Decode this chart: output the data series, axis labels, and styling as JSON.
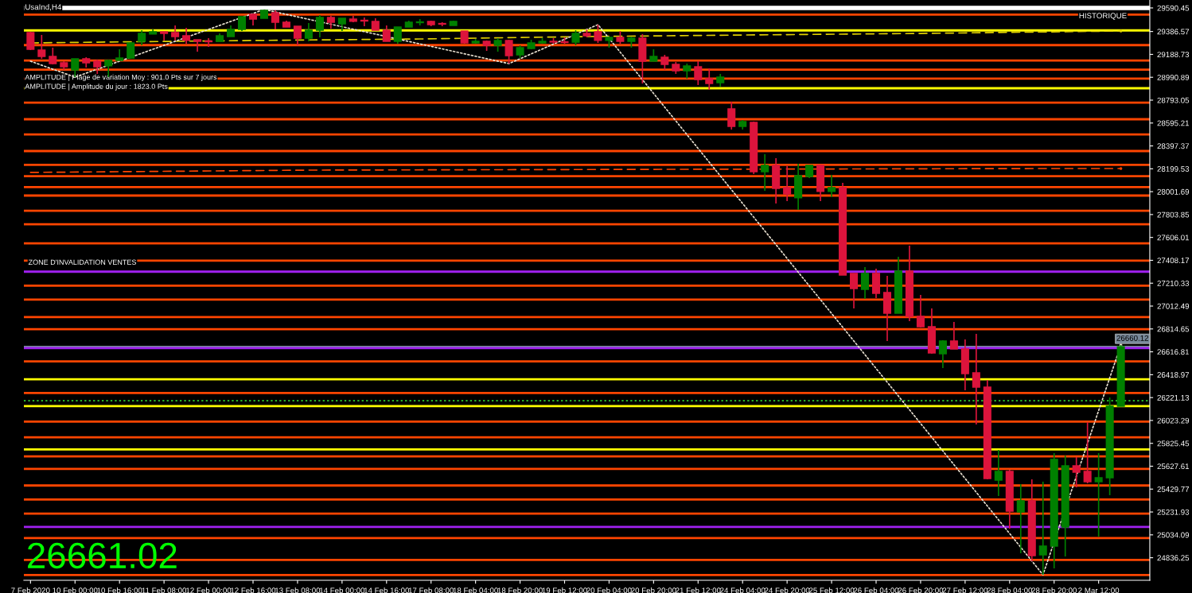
{
  "chart_data": {
    "type": "candlestick",
    "title": "UsaInd,H4",
    "categories": [
      "7 Feb 2020",
      null,
      null,
      null,
      "10 Feb 00:00",
      null,
      null,
      null,
      "10 Feb 16:00",
      null,
      null,
      null,
      "11 Feb 08:00",
      null,
      null,
      null,
      "12 Feb 00:00",
      null,
      null,
      null,
      "12 Feb 16:00",
      null,
      null,
      null,
      "13 Feb 08:00",
      null,
      null,
      null,
      "14 Feb 00:00",
      null,
      null,
      null,
      "14 Feb 16:00",
      null,
      null,
      null,
      "17 Feb 08:00",
      null,
      null,
      null,
      "18 Feb 04:00",
      null,
      null,
      null,
      "18 Feb 20:00",
      null,
      null,
      null,
      "19 Feb 12:00",
      null,
      null,
      null,
      "20 Feb 04:00",
      null,
      null,
      null,
      "20 Feb 20:00",
      null,
      null,
      null,
      "21 Feb 12:00",
      null,
      null,
      null,
      "24 Feb 04:00",
      null,
      null,
      null,
      "24 Feb 20:00",
      null,
      null,
      null,
      "25 Feb 12:00",
      null,
      null,
      null,
      "26 Feb 04:00",
      null,
      null,
      null,
      "26 Feb 20:00",
      null,
      null,
      null,
      "27 Feb 12:00",
      null,
      null,
      null,
      "28 Feb 04:00",
      null,
      null,
      null,
      "28 Feb 20:00",
      null,
      null,
      null,
      "2 Mar 12:00",
      null,
      null
    ],
    "series": [
      {
        "type": "line",
        "color": "#e0d000",
        "line_style": "dashed",
        "values": [
          29288,
          null,
          null,
          null,
          null,
          null,
          null,
          null,
          null,
          null,
          null,
          null,
          null,
          null,
          null,
          null,
          null,
          null,
          null,
          null,
          29309,
          null,
          null,
          null,
          null,
          null,
          null,
          null,
          null,
          null,
          null,
          null,
          null,
          null,
          null,
          29322,
          null,
          null,
          null,
          null,
          null,
          null,
          null,
          null,
          null,
          null,
          null,
          null,
          null,
          null,
          29343,
          null,
          null,
          null,
          null,
          null,
          null,
          null,
          null,
          null,
          null,
          null,
          null,
          null,
          null,
          29357,
          null,
          null,
          null,
          null,
          null,
          null,
          null,
          null,
          null,
          null,
          null,
          null,
          null,
          null,
          29370,
          null,
          null,
          null,
          null,
          null,
          null,
          null,
          null,
          null,
          null,
          null,
          null,
          null,
          null,
          null,
          null,
          null,
          29391
        ]
      },
      {
        "type": "line",
        "color": "#ff4500",
        "line_style": "dashed",
        "values": [
          28168,
          null,
          null,
          null,
          null,
          null,
          null,
          null,
          null,
          null,
          null,
          null,
          null,
          null,
          null,
          null,
          null,
          null,
          null,
          null,
          null,
          null,
          null,
          null,
          null,
          28188,
          null,
          null,
          null,
          null,
          null,
          null,
          null,
          null,
          null,
          null,
          null,
          null,
          null,
          null,
          null,
          null,
          null,
          null,
          null,
          null,
          null,
          null,
          null,
          null,
          null,
          null,
          null,
          null,
          null,
          null,
          null,
          null,
          null,
          null,
          null,
          null,
          null,
          null,
          null,
          null,
          null,
          null,
          null,
          null,
          null,
          null,
          null,
          null,
          null,
          null,
          null,
          null,
          null,
          null,
          null,
          null,
          null,
          null,
          null,
          null,
          null,
          null,
          null,
          null,
          null,
          null,
          28202,
          null,
          null,
          null,
          null,
          null,
          28202
        ]
      },
      {
        "type": "line",
        "color": "#e8e0d0",
        "line_style": "dotted",
        "values": [
          29130,
          null,
          null,
          null,
          28992,
          null,
          null,
          null,
          null,
          null,
          null,
          null,
          null,
          null,
          null,
          null,
          null,
          null,
          null,
          null,
          null,
          29577,
          null,
          null,
          null,
          null,
          null,
          null,
          null,
          null,
          null,
          null,
          null,
          null,
          null,
          null,
          null,
          null,
          null,
          null,
          null,
          null,
          null,
          29109,
          null,
          null,
          null,
          null,
          null,
          null,
          null,
          29446,
          null,
          null,
          null,
          null,
          null,
          null,
          null,
          null,
          null,
          null,
          null,
          null,
          null,
          null,
          null,
          null,
          null,
          null,
          null,
          null,
          null,
          null,
          null,
          null,
          null,
          null,
          null,
          null,
          null,
          null,
          null,
          null,
          null,
          null,
          null,
          null,
          null,
          null,
          null,
          24689,
          null,
          null,
          null,
          null,
          null,
          null,
          26676
        ]
      },
      {
        "type": "candlestick",
        "colors": [
          "#dc143c",
          "#dc143c",
          "#dc143c",
          "#dc143c",
          "#008000",
          "#dc143c",
          "#dc143c",
          "#008000",
          "#008000",
          "#008000",
          "#008000",
          "#008000",
          "#dc143c",
          "#dc143c",
          "#dc143c",
          "#dc143c",
          "#dc143c",
          "#008000",
          "#008000",
          "#008000",
          "#dc143c",
          "#008000",
          "#dc143c",
          "#dc143c",
          "#dc143c",
          "#008000",
          "#008000",
          "#dc143c",
          "#008000",
          "#dc143c",
          "#dc143c",
          "#dc143c",
          "#dc143c",
          "#008000",
          "#008000",
          "#008000",
          "#dc143c",
          "#dc143c",
          "#008000",
          "#dc143c",
          "#008000",
          "#dc143c",
          "#008000",
          "#dc143c",
          "#008000",
          "#008000",
          "#008000",
          "#dc143c",
          "#dc143c",
          "#008000",
          "#dc143c",
          "#dc143c",
          "#008000",
          "#dc143c",
          "#008000",
          "#dc143c",
          "#008000",
          "#dc143c",
          "#dc143c",
          "#008000",
          "#dc143c",
          "#dc143c",
          "#008000",
          "#dc143c",
          "#008000",
          "#dc143c",
          "#008000",
          "#dc143c",
          "#dc143c",
          "#008000",
          "#008000",
          "#dc143c",
          "#008000",
          "#dc143c",
          "#dc143c",
          "#008000",
          "#dc143c",
          "#dc143c",
          "#008000",
          "#dc143c",
          "#dc143c",
          "#dc143c",
          "#008000",
          "#dc143c",
          "#dc143c",
          "#dc143c",
          "#dc143c",
          "#008000",
          "#dc143c",
          "#008000",
          "#dc143c",
          "#008000",
          "#008000",
          "#008000",
          "#dc143c",
          "#dc143c",
          "#008000",
          "#008000",
          "#008000"
        ],
        "ohlc": [
          [
            29377,
            29384,
            29226,
            29233
          ],
          [
            29226,
            29357,
            29151,
            29171
          ],
          [
            29171,
            29247,
            29102,
            29109
          ],
          [
            29116,
            29130,
            29054,
            29082
          ],
          [
            29054,
            29151,
            28992,
            29151
          ],
          [
            29151,
            29164,
            29075,
            29116
          ],
          [
            29130,
            29144,
            29020,
            29082
          ],
          [
            29089,
            29144,
            28992,
            29137
          ],
          [
            29137,
            29233,
            29137,
            29157
          ],
          [
            29157,
            29295,
            29151,
            29288
          ],
          [
            29302,
            29398,
            29267,
            29370
          ],
          [
            29364,
            29405,
            29364,
            29384
          ],
          [
            29384,
            29384,
            29309,
            29370
          ],
          [
            29377,
            29439,
            29309,
            29343
          ],
          [
            29350,
            29419,
            29281,
            29309
          ],
          [
            29315,
            29315,
            29212,
            29302
          ],
          [
            29305,
            29329,
            29254,
            29298
          ],
          [
            29302,
            29370,
            29302,
            29350
          ],
          [
            29343,
            29439,
            29343,
            29405
          ],
          [
            29405,
            29515,
            29391,
            29515
          ],
          [
            29535,
            29542,
            29439,
            29494
          ],
          [
            29501,
            29577,
            29501,
            29570
          ],
          [
            29549,
            29570,
            29405,
            29467
          ],
          [
            29467,
            29480,
            29425,
            29425
          ],
          [
            29432,
            29432,
            29267,
            29329
          ],
          [
            29329,
            29460,
            29302,
            29398
          ],
          [
            29398,
            29529,
            29336,
            29508
          ],
          [
            29508,
            29522,
            29412,
            29467
          ],
          [
            29453,
            29501,
            29391,
            29501
          ],
          [
            29494,
            29522,
            29467,
            29474
          ],
          [
            29484,
            29508,
            29432,
            29477
          ],
          [
            29474,
            29501,
            29398,
            29398
          ],
          [
            29398,
            29439,
            29302,
            29302
          ],
          [
            29302,
            29425,
            29281,
            29425
          ],
          [
            29425,
            29480,
            29425,
            29467
          ],
          [
            29463,
            29494,
            29439,
            29470
          ],
          [
            29474,
            29480,
            29432,
            29446
          ],
          [
            29456,
            29467,
            29432,
            29450
          ],
          [
            29439,
            29480,
            29439,
            29474
          ],
          [
            29391,
            29391,
            29281,
            29288
          ],
          [
            29288,
            29322,
            29281,
            29302
          ],
          [
            29302,
            29309,
            29219,
            29267
          ],
          [
            29267,
            29329,
            29212,
            29309
          ],
          [
            29309,
            29315,
            29109,
            29178
          ],
          [
            29185,
            29267,
            29157,
            29247
          ],
          [
            29240,
            29315,
            29233,
            29288
          ],
          [
            29288,
            29329,
            29281,
            29302
          ],
          [
            29302,
            29329,
            29281,
            29295
          ],
          [
            29298,
            29336,
            29281,
            29291
          ],
          [
            29295,
            29398,
            29267,
            29370
          ],
          [
            29370,
            29405,
            29336,
            29350
          ],
          [
            29384,
            29446,
            29288,
            29309
          ],
          [
            29309,
            29343,
            29247,
            29336
          ],
          [
            29336,
            29391,
            29281,
            29302
          ],
          [
            29302,
            29343,
            29247,
            29329
          ],
          [
            29329,
            29364,
            28937,
            29130
          ],
          [
            29130,
            29233,
            29130,
            29171
          ],
          [
            29164,
            29185,
            29054,
            29102
          ],
          [
            29102,
            29123,
            29020,
            29047
          ],
          [
            29047,
            29109,
            28979,
            29089
          ],
          [
            29082,
            29130,
            28924,
            28972
          ],
          [
            28979,
            29068,
            28882,
            28937
          ],
          [
            28944,
            29020,
            28910,
            28992
          ],
          [
            28718,
            28779,
            28539,
            28566
          ],
          [
            28566,
            28621,
            28539,
            28608
          ],
          [
            28601,
            28608,
            28154,
            28174
          ],
          [
            28174,
            28326,
            28009,
            28229
          ],
          [
            28229,
            28291,
            27899,
            28030
          ],
          [
            28037,
            28223,
            27920,
            27982
          ],
          [
            27948,
            28243,
            27845,
            28140
          ],
          [
            28133,
            28229,
            28119,
            28229
          ],
          [
            28229,
            28229,
            27920,
            28003
          ],
          [
            28003,
            28147,
            27954,
            28037
          ],
          [
            28037,
            28078,
            27281,
            27281
          ],
          [
            27295,
            27295,
            26992,
            27164
          ],
          [
            27157,
            27350,
            27075,
            27295
          ],
          [
            27295,
            27336,
            27081,
            27123
          ],
          [
            27130,
            27274,
            26710,
            26951
          ],
          [
            26951,
            27439,
            26951,
            27315
          ],
          [
            27315,
            27535,
            26882,
            26923
          ],
          [
            26923,
            27109,
            26827,
            26834
          ],
          [
            26834,
            26992,
            26600,
            26607
          ],
          [
            26600,
            26717,
            26476,
            26710
          ],
          [
            26710,
            26875,
            26641,
            26641
          ],
          [
            26641,
            26724,
            26284,
            26428
          ],
          [
            26435,
            26772,
            25988,
            26312
          ],
          [
            26312,
            26373,
            25514,
            25521
          ],
          [
            25507,
            25768,
            25370,
            25583
          ],
          [
            25583,
            25597,
            25088,
            25239
          ],
          [
            25232,
            25473,
            24875,
            25329
          ],
          [
            25329,
            25514,
            24806,
            24854
          ],
          [
            24861,
            25494,
            24689,
            24937
          ],
          [
            24937,
            25741,
            24744,
            25686
          ],
          [
            25102,
            25720,
            24847,
            25631
          ],
          [
            25631,
            25707,
            25445,
            25576
          ],
          [
            25583,
            26009,
            25480,
            25494
          ],
          [
            25494,
            25741,
            25019,
            25528
          ],
          [
            25528,
            26222,
            25377,
            26147
          ],
          [
            26147,
            26676,
            26147,
            26660
          ]
        ]
      }
    ],
    "ylim": [
      24641,
      29659
    ],
    "yticks": [
      29590.45,
      29386.57,
      29188.73,
      28990.89,
      28793.05,
      28595.21,
      28397.37,
      28199.53,
      28001.69,
      27803.85,
      27606.01,
      27408.17,
      27210.33,
      27012.49,
      26814.65,
      26616.81,
      26418.97,
      26221.13,
      26023.29,
      25825.45,
      25627.61,
      25429.77,
      25231.93,
      25034.09,
      24836.25
    ],
    "ref_lines": [
      {
        "axis": "y",
        "value": 29590,
        "color": "#ffffff"
      },
      {
        "axis": "y",
        "value": 29533,
        "color": "#ff4500"
      },
      {
        "axis": "y",
        "value": 29396,
        "color": "#ffff00"
      },
      {
        "axis": "y",
        "value": 29269,
        "color": "#ff4500"
      },
      {
        "axis": "y",
        "value": 29136,
        "color": "#ff4500"
      },
      {
        "axis": "y",
        "value": 29056,
        "color": "#ff4500"
      },
      {
        "axis": "y",
        "value": 28980,
        "color": "#ff4500"
      },
      {
        "axis": "y",
        "value": 28896,
        "color": "#ffff00"
      },
      {
        "axis": "y",
        "value": 28772,
        "color": "#ff4500"
      },
      {
        "axis": "y",
        "value": 28628,
        "color": "#ff4500"
      },
      {
        "axis": "y",
        "value": 28497,
        "color": "#ff4500"
      },
      {
        "axis": "y",
        "value": 28353,
        "color": "#ff4500"
      },
      {
        "axis": "y",
        "value": 28234,
        "color": "#ff4500"
      },
      {
        "axis": "y",
        "value": 28135,
        "color": "#ff4500"
      },
      {
        "axis": "y",
        "value": 28041,
        "color": "#ff4500"
      },
      {
        "axis": "y",
        "value": 27968,
        "color": "#ff4500"
      },
      {
        "axis": "y",
        "value": 27837,
        "color": "#ff4500"
      },
      {
        "axis": "y",
        "value": 27720,
        "color": "#ff4500"
      },
      {
        "axis": "y",
        "value": 27555,
        "color": "#ff4500"
      },
      {
        "axis": "y",
        "value": 27406,
        "color": "#ff4500"
      },
      {
        "axis": "y",
        "value": 27310,
        "color": "#a020f0",
        "label": "ZONE D'INVALIDATION VENTES"
      },
      {
        "axis": "y",
        "value": 27189,
        "color": "#ff4500"
      },
      {
        "axis": "y",
        "value": 27069,
        "color": "#ff4500"
      },
      {
        "axis": "y",
        "value": 26917,
        "color": "#ff4500"
      },
      {
        "axis": "y",
        "value": 26812,
        "color": "#ff4500"
      },
      {
        "axis": "y",
        "value": 26660.12,
        "color": "#778899",
        "label": "26660.12"
      },
      {
        "axis": "y",
        "value": 26649,
        "color": "#a020f0"
      },
      {
        "axis": "y",
        "value": 26534,
        "color": "#ff4500"
      },
      {
        "axis": "y",
        "value": 26380,
        "color": "#ffff00"
      },
      {
        "axis": "y",
        "value": 26261,
        "color": "#ff4500"
      },
      {
        "axis": "y",
        "value": 26194,
        "color": "#32cd32",
        "line_style": "dotted"
      },
      {
        "axis": "y",
        "value": 26148,
        "color": "#ffff00"
      },
      {
        "axis": "y",
        "value": 26013,
        "color": "#ff4500"
      },
      {
        "axis": "y",
        "value": 25878,
        "color": "#ff4500"
      },
      {
        "axis": "y",
        "value": 25773,
        "color": "#ffff00"
      },
      {
        "axis": "y",
        "value": 25713,
        "color": "#ff4500"
      },
      {
        "axis": "y",
        "value": 25605,
        "color": "#ff4500"
      },
      {
        "axis": "y",
        "value": 25461,
        "color": "#ff4500"
      },
      {
        "axis": "y",
        "value": 25340,
        "color": "#ff4500"
      },
      {
        "axis": "y",
        "value": 25218,
        "color": "#ff4500"
      },
      {
        "axis": "y",
        "value": 25103,
        "color": "#a020f0"
      },
      {
        "axis": "y",
        "value": 25007,
        "color": "#ff4500"
      },
      {
        "axis": "y",
        "value": 24817,
        "color": "#ff4500"
      },
      {
        "axis": "y",
        "value": 24687,
        "color": "#ff4500"
      }
    ],
    "annotations": [
      "HISTORIQUE",
      "AMPLITUDE | Plage de variation Moy : 901.0 Pts sur 7 jours",
      "AMPLITUDE | Amplitude du jour : 1823.0 Pts",
      "26661.02"
    ]
  }
}
